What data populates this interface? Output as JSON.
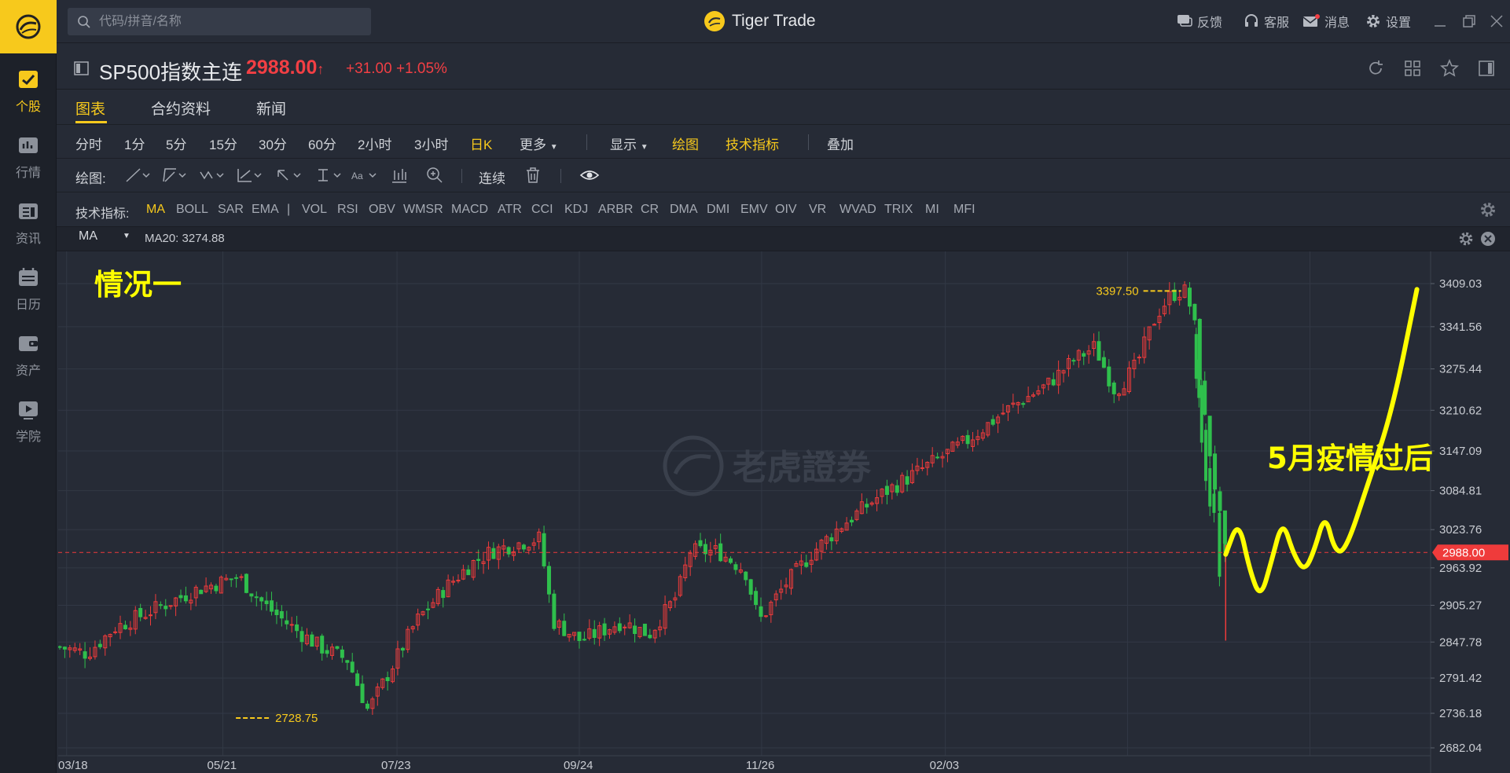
{
  "app": {
    "title": "Tiger Trade"
  },
  "search": {
    "placeholder": "代码/拼音/名称"
  },
  "rail": {
    "items": [
      {
        "label": "个股",
        "icon": "stock-chart-icon",
        "active": true
      },
      {
        "label": "行情",
        "icon": "market-icon"
      },
      {
        "label": "资讯",
        "icon": "news-icon"
      },
      {
        "label": "日历",
        "icon": "calendar-icon"
      },
      {
        "label": "资产",
        "icon": "wallet-icon"
      },
      {
        "label": "学院",
        "icon": "play-icon"
      }
    ]
  },
  "top_actions": [
    {
      "label": "反馈",
      "icon": "feedback-icon"
    },
    {
      "label": "客服",
      "icon": "headset-icon"
    },
    {
      "label": "消息",
      "icon": "mail-icon"
    },
    {
      "label": "设置",
      "icon": "gear-icon"
    }
  ],
  "symbol": {
    "name": "SP500指数主连",
    "price": "2988.00",
    "arrow": "↑",
    "change": "+31.00",
    "change_pct": "+1.05%"
  },
  "tabs": [
    "图表",
    "合约资料",
    "新闻"
  ],
  "periods": [
    "分时",
    "1分",
    "5分",
    "15分",
    "30分",
    "60分",
    "2小时",
    "3小时",
    "日K",
    "更多"
  ],
  "period_active": "日K",
  "display_menu": {
    "show": "显示",
    "draw": "绘图",
    "tech": "技术指标",
    "overlay": "叠加"
  },
  "drawing": {
    "label": "绘图:",
    "continuous": "连续"
  },
  "indicators": {
    "label": "技术指标:",
    "items": [
      "MA",
      "BOLL",
      "SAR",
      "EMA",
      "|",
      "VOL",
      "RSI",
      "OBV",
      "WMSR",
      "MACD",
      "ATR",
      "CCI",
      "KDJ",
      "ARBR",
      "CR",
      "DMA",
      "DMI",
      "EMV",
      "OIV",
      "VR",
      "WVAD",
      "TRIX",
      "MI",
      "MFI"
    ],
    "active": "MA"
  },
  "ma_row": {
    "select": "MA",
    "value": "MA20: 3274.88"
  },
  "colors": {
    "up": "#ef3b3b",
    "down": "#2fbf4c",
    "accent": "#f7c91c",
    "annotation": "#ffff00",
    "bg": "#262b36"
  },
  "chart_data": {
    "type": "candlestick",
    "y_ticks": [
      "3409.03",
      "3341.56",
      "3275.44",
      "3210.62",
      "3147.09",
      "3084.81",
      "3023.76",
      "2963.92",
      "2905.27",
      "2847.78",
      "2791.42",
      "2736.18",
      "2682.04"
    ],
    "ylim": [
      2682.04,
      3409.03
    ],
    "x_ticks": [
      "03/18",
      "05/21",
      "07/23",
      "09/24",
      "11/26",
      "02/03"
    ],
    "current_price": "2988.00",
    "high_label": "3397.50",
    "low_label": "2728.75",
    "watermark": "老虎證券",
    "annotations": {
      "top_left": "情况一",
      "projection": "5月疫情过后"
    },
    "anchors": [
      {
        "x": 0,
        "c": 2840
      },
      {
        "x": 0.02,
        "c": 2830
      },
      {
        "x": 0.04,
        "c": 2870
      },
      {
        "x": 0.07,
        "c": 2900
      },
      {
        "x": 0.1,
        "c": 2930
      },
      {
        "x": 0.13,
        "c": 2950
      },
      {
        "x": 0.15,
        "c": 2905
      },
      {
        "x": 0.17,
        "c": 2870
      },
      {
        "x": 0.19,
        "c": 2840
      },
      {
        "x": 0.21,
        "c": 2820
      },
      {
        "x": 0.225,
        "c": 2740
      },
      {
        "x": 0.24,
        "c": 2800
      },
      {
        "x": 0.26,
        "c": 2880
      },
      {
        "x": 0.28,
        "c": 2930
      },
      {
        "x": 0.3,
        "c": 2970
      },
      {
        "x": 0.315,
        "c": 2990
      },
      {
        "x": 0.33,
        "c": 3000
      },
      {
        "x": 0.35,
        "c": 3010
      },
      {
        "x": 0.36,
        "c": 2880
      },
      {
        "x": 0.38,
        "c": 2850
      },
      {
        "x": 0.41,
        "c": 2880
      },
      {
        "x": 0.43,
        "c": 2860
      },
      {
        "x": 0.45,
        "c": 2920
      },
      {
        "x": 0.46,
        "c": 2990
      },
      {
        "x": 0.48,
        "c": 2990
      },
      {
        "x": 0.5,
        "c": 2960
      },
      {
        "x": 0.51,
        "c": 2880
      },
      {
        "x": 0.53,
        "c": 2940
      },
      {
        "x": 0.55,
        "c": 2990
      },
      {
        "x": 0.57,
        "c": 3030
      },
      {
        "x": 0.6,
        "c": 3080
      },
      {
        "x": 0.63,
        "c": 3120
      },
      {
        "x": 0.66,
        "c": 3160
      },
      {
        "x": 0.69,
        "c": 3210
      },
      {
        "x": 0.72,
        "c": 3250
      },
      {
        "x": 0.74,
        "c": 3290
      },
      {
        "x": 0.755,
        "c": 3310
      },
      {
        "x": 0.77,
        "c": 3240
      },
      {
        "x": 0.785,
        "c": 3280
      },
      {
        "x": 0.8,
        "c": 3360
      },
      {
        "x": 0.81,
        "c": 3390
      },
      {
        "x": 0.82,
        "c": 3400
      },
      {
        "x": 0.827,
        "c": 3360
      },
      {
        "x": 0.835,
        "c": 3200
      },
      {
        "x": 0.845,
        "c": 3060
      },
      {
        "x": 0.85,
        "c": 2990
      }
    ],
    "projection_path": [
      [
        0.8505,
        2985
      ],
      [
        0.86,
        3040
      ],
      [
        0.868,
        2960
      ],
      [
        0.876,
        2915
      ],
      [
        0.884,
        2975
      ],
      [
        0.892,
        3040
      ],
      [
        0.9,
        2985
      ],
      [
        0.908,
        2958
      ],
      [
        0.915,
        2990
      ],
      [
        0.923,
        3050
      ],
      [
        0.93,
        2990
      ],
      [
        0.938,
        2990
      ],
      [
        0.955,
        3100
      ],
      [
        0.972,
        3210
      ],
      [
        0.99,
        3400
      ]
    ]
  }
}
